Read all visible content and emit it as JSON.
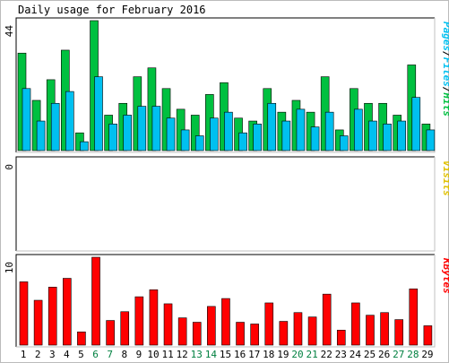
{
  "chart_data": {
    "type": "bar",
    "title": "Daily usage for February 2016",
    "categories": [
      "1",
      "2",
      "3",
      "4",
      "5",
      "6",
      "7",
      "8",
      "9",
      "10",
      "11",
      "12",
      "13",
      "14",
      "15",
      "16",
      "17",
      "18",
      "19",
      "20",
      "21",
      "22",
      "23",
      "24",
      "25",
      "26",
      "27",
      "28",
      "29"
    ],
    "weekend_days": [
      "6",
      "7",
      "13",
      "14",
      "20",
      "21",
      "27",
      "28"
    ],
    "colors": {
      "hits": "#00c040",
      "pages": "#00c0f0",
      "visits": "#e0c000",
      "kbytes": "#ff0000",
      "weekday_label": "#000000",
      "weekend_label": "#008040"
    },
    "panels": [
      {
        "id": "hits",
        "axis_max_label": "44",
        "axis_max": 44,
        "side_label_parts": [
          {
            "text": "Pages",
            "color": "#00c0f0"
          },
          {
            "text": "/",
            "color": "#000000"
          },
          {
            "text": "Files",
            "color": "#00c0f0"
          },
          {
            "text": "/",
            "color": "#000000"
          },
          {
            "text": "Hits",
            "color": "#00c040"
          }
        ],
        "series": [
          {
            "name": "Hits",
            "values": [
              33,
              17,
              24,
              34,
              6,
              44,
              12,
              16,
              25,
              28,
              21,
              14,
              12,
              19,
              23,
              11,
              10,
              21,
              13,
              17,
              13,
              25,
              7,
              21,
              16,
              16,
              12,
              29,
              9
            ]
          },
          {
            "name": "Pages",
            "values": [
              21,
              10,
              16,
              20,
              3,
              25,
              9,
              12,
              15,
              15,
              11,
              7,
              5,
              11,
              13,
              6,
              9,
              16,
              10,
              14,
              8,
              13,
              5,
              14,
              10,
              9,
              10,
              18,
              7
            ]
          }
        ]
      },
      {
        "id": "visits",
        "axis_max_label": "0",
        "axis_max": 0,
        "side_label_parts": [
          {
            "text": "Visits",
            "color": "#e0c000"
          }
        ],
        "series": [
          {
            "name": "Visits",
            "values": [
              0,
              0,
              0,
              0,
              0,
              0,
              0,
              0,
              0,
              0,
              0,
              0,
              0,
              0,
              0,
              0,
              0,
              0,
              0,
              0,
              0,
              0,
              0,
              0,
              0,
              0,
              0,
              0,
              0
            ]
          }
        ]
      },
      {
        "id": "kbytes",
        "axis_max_label": "10",
        "axis_max": 10,
        "side_label_parts": [
          {
            "text": "KBytes",
            "color": "#ff0000"
          }
        ],
        "series": [
          {
            "name": "KBytes",
            "values": [
              7.2,
              5.1,
              6.6,
              7.6,
              1.5,
              10,
              2.8,
              3.8,
              5.5,
              6.3,
              4.7,
              3.1,
              2.6,
              4.4,
              5.3,
              2.6,
              2.4,
              4.8,
              2.7,
              3.7,
              3.2,
              5.8,
              1.7,
              4.8,
              3.4,
              3.7,
              2.9,
              6.4,
              2.2
            ]
          }
        ]
      }
    ]
  }
}
